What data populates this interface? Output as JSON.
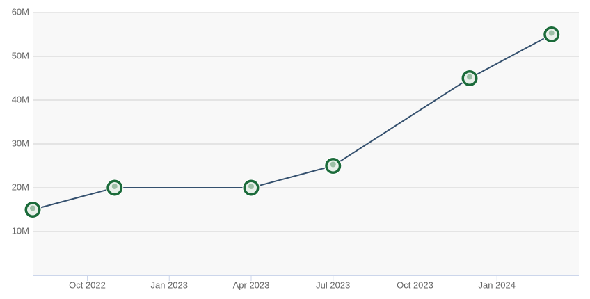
{
  "chart_data": {
    "type": "line",
    "x": [
      "2022-08",
      "2022-11",
      "2023-04",
      "2023-07",
      "2023-12",
      "2024-03"
    ],
    "series": [
      {
        "color": "#34506e",
        "values": [
          15000000,
          20000000,
          20000000,
          25000000,
          45000000,
          55000000
        ]
      }
    ],
    "xlim": [
      "2022-08",
      "2024-04"
    ],
    "xticks": [
      {
        "value": "2022-10",
        "label": "Oct 2022"
      },
      {
        "value": "2023-01",
        "label": "Jan 2023"
      },
      {
        "value": "2023-04",
        "label": "Apr 2023"
      },
      {
        "value": "2023-07",
        "label": "Jul 2023"
      },
      {
        "value": "2023-10",
        "label": "Oct 2023"
      },
      {
        "value": "2024-01",
        "label": "Jan 2024"
      }
    ],
    "ylim": [
      0,
      60000000
    ],
    "yticks": [
      {
        "value": 10000000,
        "label": "10M"
      },
      {
        "value": 20000000,
        "label": "20M"
      },
      {
        "value": 30000000,
        "label": "30M"
      },
      {
        "value": 40000000,
        "label": "40M"
      },
      {
        "value": 50000000,
        "label": "50M"
      },
      {
        "value": 60000000,
        "label": "60M"
      }
    ],
    "grid": true
  }
}
